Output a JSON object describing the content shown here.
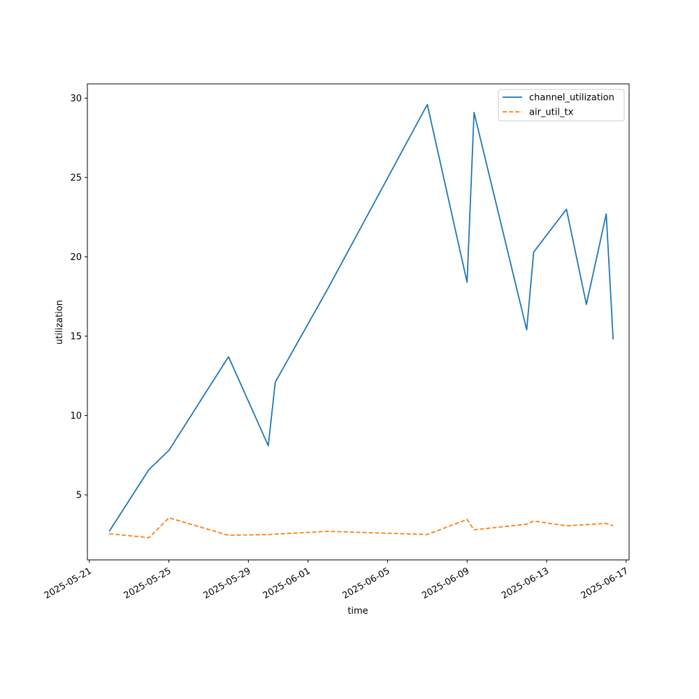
{
  "chart_data": {
    "type": "line",
    "title": "",
    "xlabel": "time",
    "ylabel": "utilization",
    "grid": false,
    "legend_position": "top-right",
    "x_ticks": [
      "2025-05-21",
      "2025-05-25",
      "2025-05-29",
      "2025-06-01",
      "2025-06-05",
      "2025-06-09",
      "2025-06-13",
      "2025-06-17"
    ],
    "y_ticks": [
      5,
      10,
      15,
      20,
      25,
      30
    ],
    "xlim": [
      "2025-05-21",
      "2025-06-17"
    ],
    "ylim": [
      0.9,
      30.9
    ],
    "series": [
      {
        "name": "channel_utilization",
        "color": "#1f77b4",
        "style": "solid",
        "points": [
          [
            "2025-05-22",
            2.7
          ],
          [
            "2025-05-24",
            6.6
          ],
          [
            "2025-05-25",
            7.8
          ],
          [
            "2025-05-28",
            13.7
          ],
          [
            "2025-05-30",
            8.1
          ],
          [
            "2025-05-30",
            12.1
          ],
          [
            "2025-06-02",
            18.0
          ],
          [
            "2025-06-07",
            29.6
          ],
          [
            "2025-06-09",
            18.4
          ],
          [
            "2025-06-09",
            29.1
          ],
          [
            "2025-06-12",
            15.4
          ],
          [
            "2025-06-12",
            20.3
          ],
          [
            "2025-06-14",
            23.0
          ],
          [
            "2025-06-15",
            17.0
          ],
          [
            "2025-06-16",
            22.7
          ],
          [
            "2025-06-16",
            14.8
          ]
        ]
      },
      {
        "name": "air_util_tx",
        "color": "#ff7f0e",
        "style": "dashed",
        "points": [
          [
            "2025-05-22",
            2.55
          ],
          [
            "2025-05-24",
            2.3
          ],
          [
            "2025-05-25",
            3.55
          ],
          [
            "2025-05-28",
            2.45
          ],
          [
            "2025-05-30",
            2.5
          ],
          [
            "2025-06-02",
            2.7
          ],
          [
            "2025-06-07",
            2.5
          ],
          [
            "2025-06-09",
            3.45
          ],
          [
            "2025-06-09",
            2.8
          ],
          [
            "2025-06-12",
            3.15
          ],
          [
            "2025-06-12",
            3.35
          ],
          [
            "2025-06-14",
            3.05
          ],
          [
            "2025-06-16",
            3.2
          ],
          [
            "2025-06-16",
            3.05
          ]
        ]
      }
    ]
  }
}
